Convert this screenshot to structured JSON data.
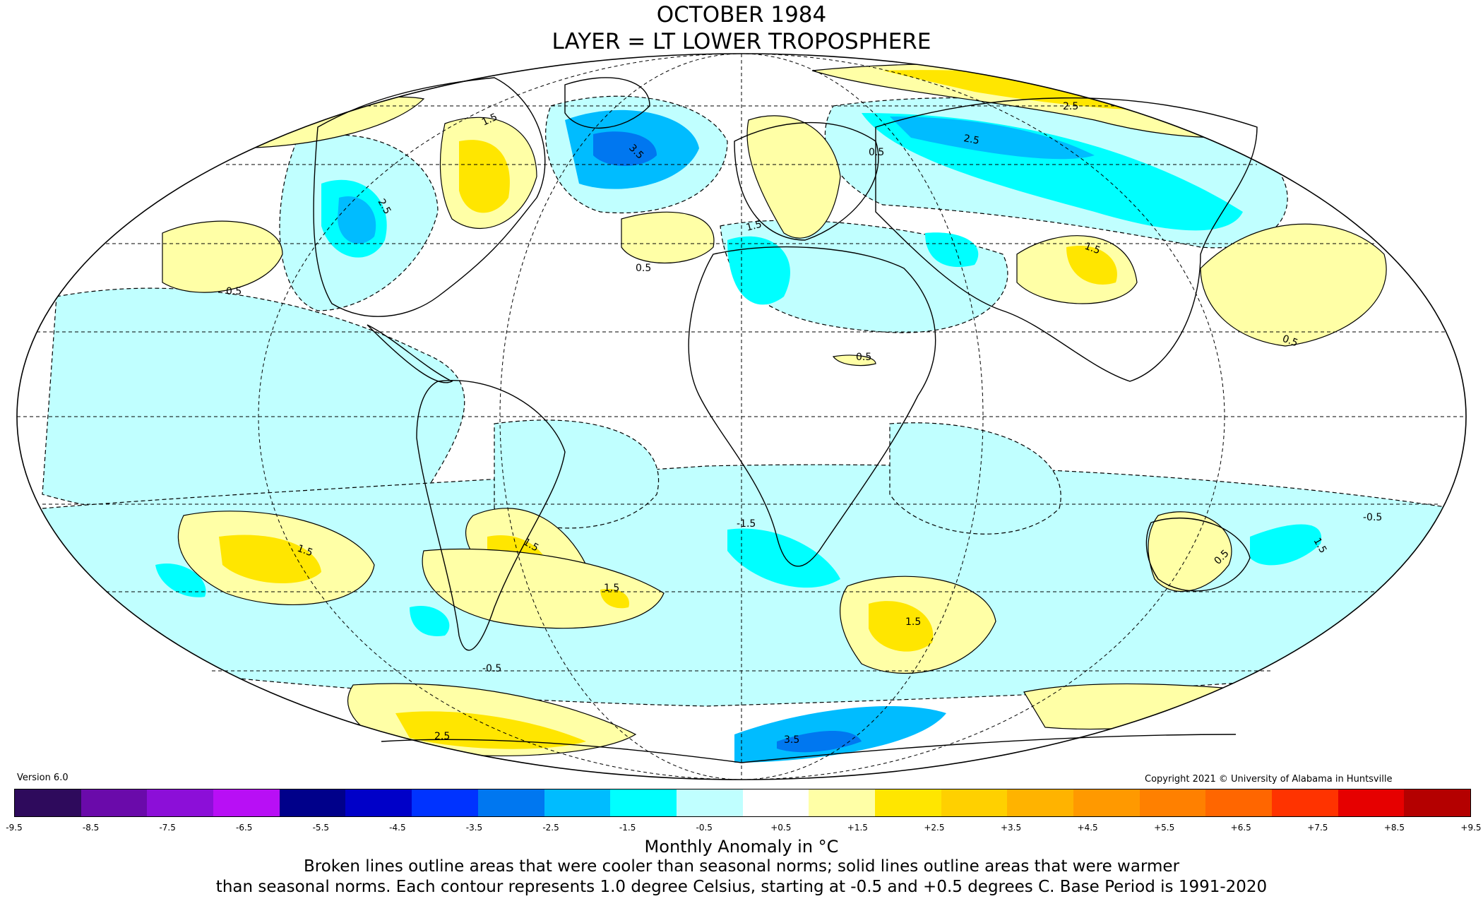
{
  "title": {
    "line1": "OCTOBER 1984",
    "line2": "LAYER = LT LOWER TROPOSPHERE"
  },
  "version": "Version 6.0",
  "copyright": "Copyright 2021 © University of Alabama in Huntsville",
  "colorbar": {
    "colors": [
      "#2e0a5c",
      "#6a0aaa",
      "#8c0fd8",
      "#b80ff5",
      "#00008a",
      "#0000c8",
      "#0033ff",
      "#0077f0",
      "#00bcff",
      "#00ffff",
      "#c0ffff",
      "#ffffff",
      "#ffffa6",
      "#ffe600",
      "#ffd000",
      "#ffb300",
      "#ff9900",
      "#ff8000",
      "#ff6600",
      "#ff3300",
      "#e60000",
      "#b40000"
    ],
    "tick_labels": [
      "-9.5",
      "-8.5",
      "-7.5",
      "-6.5",
      "-5.5",
      "-4.5",
      "-3.5",
      "-2.5",
      "-1.5",
      "-0.5",
      "+0.5",
      "+1.5",
      "+2.5",
      "+3.5",
      "+4.5",
      "+5.5",
      "+6.5",
      "+7.5",
      "+8.5",
      "+9.5"
    ],
    "tick_values": [
      -9.5,
      -8.5,
      -7.5,
      -6.5,
      -5.5,
      -4.5,
      -3.5,
      -2.5,
      -1.5,
      -0.5,
      0.5,
      1.5,
      2.5,
      3.5,
      4.5,
      5.5,
      6.5,
      7.5,
      8.5,
      9.5
    ]
  },
  "caption": {
    "units": "Monthly Anomaly in °C",
    "line1": "Broken lines outline areas that were cooler than seasonal norms; solid lines outline areas that were warmer",
    "line2": "than seasonal norms. Each contour represents 1.0 degree Celsius, starting at -0.5 and +0.5 degrees C. Base Period is 1991-2020"
  },
  "map": {
    "projection": "Mollweide",
    "cold_color": "#c0ffff",
    "warm_color": "#ffffa6",
    "anomaly_regions": [
      {
        "name": "eastern-pacific-warm",
        "value": 0.5,
        "label": "0.5"
      },
      {
        "name": "western-us-cold",
        "value": -2.5,
        "label": "2.5"
      },
      {
        "name": "canada-warm",
        "value": 1.5,
        "label": "1.5"
      },
      {
        "name": "greenland-cold",
        "value": -3.5,
        "label": "3.5"
      },
      {
        "name": "north-atlantic-warm",
        "value": 0.5,
        "label": "0.5"
      },
      {
        "name": "europe-warm",
        "value": 0.5,
        "label": "0.5"
      },
      {
        "name": "north-africa-cold",
        "value": -1.5,
        "label": "1.5"
      },
      {
        "name": "siberia-cold",
        "value": -2.5,
        "label": "2.5"
      },
      {
        "name": "arctic-russia-warm",
        "value": 2.5,
        "label": "2.5"
      },
      {
        "name": "tibet-warm",
        "value": 1.5,
        "label": "1.5"
      },
      {
        "name": "north-pacific-warm",
        "value": 0.5,
        "label": "0.5"
      },
      {
        "name": "sahara-warm",
        "value": 0.5,
        "label": "0.5"
      },
      {
        "name": "south-pacific-warm",
        "value": 1.5,
        "label": "1.5"
      },
      {
        "name": "south-america-warm",
        "value": 1.5,
        "label": "1.5"
      },
      {
        "name": "south-atlantic-warm",
        "value": 1.5,
        "label": "1.5"
      },
      {
        "name": "southern-africa-cold",
        "value": -1.5,
        "label": "-1.5"
      },
      {
        "name": "indian-ocean-warm",
        "value": 1.5,
        "label": "1.5"
      },
      {
        "name": "australia-warm",
        "value": 0.5,
        "label": "0.5"
      },
      {
        "name": "tasman-cold",
        "value": -1.5,
        "label": "1.5"
      },
      {
        "name": "antarctic-peninsula-warm",
        "value": 2.5,
        "label": "2.5"
      },
      {
        "name": "east-antarctica-cold",
        "value": -3.5,
        "label": "3.5"
      },
      {
        "name": "tropical-pacific-cold",
        "value": -0.5,
        "label": "-0.5"
      },
      {
        "name": "southern-ocean-cold",
        "value": -0.5,
        "label": "-0.5"
      }
    ]
  }
}
